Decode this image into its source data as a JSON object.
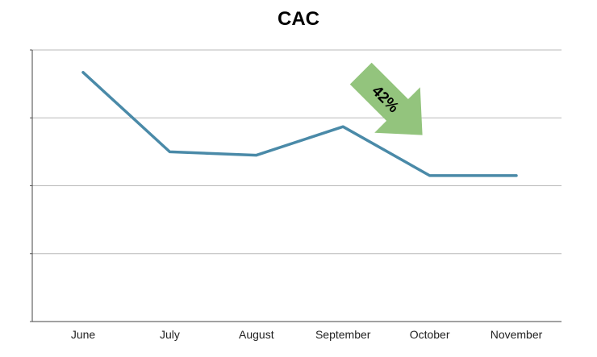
{
  "chart_data": {
    "type": "line",
    "title": "CAC",
    "xlabel": "",
    "ylabel": "",
    "categories": [
      "June",
      "July",
      "August",
      "September",
      "October",
      "November"
    ],
    "series": [
      {
        "values": [
          3.67,
          2.5,
          2.45,
          2.87,
          2.15,
          2.15
        ],
        "color": "#4a8aa8"
      }
    ],
    "ylim": [
      0,
      4
    ],
    "y_gridlines": [
      1,
      2,
      3,
      4
    ],
    "y_tick_labels_visible": false,
    "grid": true,
    "annotation": {
      "text": "42%",
      "shape": "arrow-down-right",
      "color": "#93c47d",
      "between": [
        "September",
        "October"
      ]
    }
  }
}
